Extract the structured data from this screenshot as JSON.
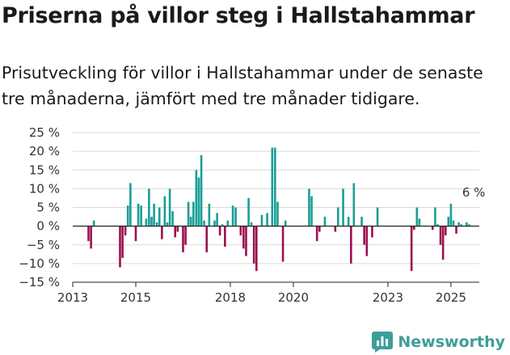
{
  "title": "Priserna på villor steg i Hallstahammar",
  "subtitle": "Prisutveckling för villor i Hallstahammar under de senaste tre månaderna, jämfört med tre månader tidigare.",
  "brand": {
    "name": "Newsworthy",
    "icon": "newsworthy-logo-icon"
  },
  "colors": {
    "positive": "#1a9e96",
    "negative": "#9c1050",
    "axis": "#222222",
    "grid": "#d9d9d9"
  },
  "chart_data": {
    "type": "bar",
    "x_unit": "year",
    "ylim": [
      -15,
      25
    ],
    "yticks": [
      25,
      20,
      15,
      10,
      5,
      0,
      -5,
      -10,
      -15
    ],
    "ytick_labels": [
      "25 %",
      "20 %",
      "15 %",
      "10 %",
      "5 %",
      "0 %",
      "−5 %",
      "−10 %",
      "−15 %"
    ],
    "xlim": [
      2013,
      2025.9
    ],
    "xticks": [
      2013,
      2015,
      2018,
      2020,
      2023,
      2025
    ],
    "xtick_labels": [
      "2013",
      "2015",
      "2018",
      "2020",
      "2023",
      "2025"
    ],
    "grid": "horizontal",
    "annotation": {
      "label": "6 %",
      "x": 2025.75,
      "y": 6
    },
    "x": [
      2013.5,
      2013.58,
      2013.67,
      2014.5,
      2014.58,
      2014.67,
      2014.75,
      2014.83,
      2015.0,
      2015.08,
      2015.17,
      2015.33,
      2015.42,
      2015.5,
      2015.58,
      2015.67,
      2015.75,
      2015.83,
      2015.92,
      2016.0,
      2016.08,
      2016.17,
      2016.25,
      2016.33,
      2016.5,
      2016.58,
      2016.67,
      2016.75,
      2016.83,
      2016.92,
      2017.0,
      2017.08,
      2017.17,
      2017.25,
      2017.33,
      2017.5,
      2017.58,
      2017.67,
      2017.75,
      2017.83,
      2017.92,
      2018.08,
      2018.17,
      2018.33,
      2018.42,
      2018.5,
      2018.58,
      2018.67,
      2018.75,
      2018.83,
      2019.0,
      2019.17,
      2019.33,
      2019.42,
      2019.5,
      2019.67,
      2019.75,
      2020.5,
      2020.58,
      2020.75,
      2020.83,
      2021.0,
      2021.33,
      2021.42,
      2021.58,
      2021.75,
      2021.83,
      2021.92,
      2022.17,
      2022.25,
      2022.33,
      2022.5,
      2022.67,
      2023.75,
      2023.83,
      2023.92,
      2024.0,
      2024.42,
      2024.5,
      2024.58,
      2024.67,
      2024.75,
      2024.83,
      2024.92,
      2025.0,
      2025.08,
      2025.17,
      2025.25,
      2025.33,
      2025.5,
      2025.58
    ],
    "values": [
      -4,
      -6,
      1.5,
      -11,
      -8.5,
      -2.5,
      5.5,
      11.5,
      -4,
      6,
      5.5,
      2,
      10,
      2.5,
      6,
      1,
      5,
      -3.5,
      8,
      1,
      10,
      4,
      -3,
      -1.5,
      -7,
      -5,
      6.5,
      2.5,
      6.5,
      15,
      13,
      19,
      1.5,
      -7,
      6,
      1.5,
      3.5,
      -2.5,
      0.5,
      -5.5,
      1.5,
      5.5,
      5,
      -2.5,
      -6,
      -8,
      7.5,
      1,
      -10,
      -12,
      3,
      3.5,
      21,
      21,
      6.5,
      -9.5,
      1.5,
      10,
      8,
      -4,
      -1.5,
      2.5,
      -1.5,
      5,
      10,
      2.5,
      -10,
      11.5,
      2.5,
      -5,
      -8,
      -3,
      5,
      -12,
      -1,
      5,
      2,
      -1,
      5,
      0.5,
      -5,
      -9,
      -2.5,
      2.5,
      6,
      1.5,
      -2,
      1,
      0.5,
      1,
      0.5
    ]
  }
}
